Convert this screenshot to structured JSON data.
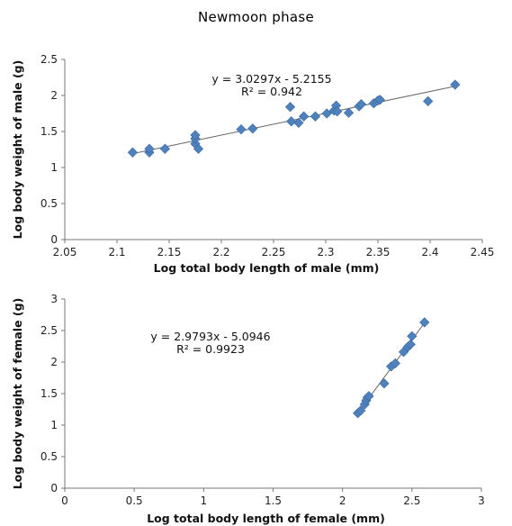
{
  "page_title": "Newmoon phase",
  "colors": {
    "marker": "#4f81bd",
    "trendline": "#666666",
    "axis": "#777777"
  },
  "chart_data": [
    {
      "type": "scatter",
      "xlabel": "Log total body length of male (mm)",
      "ylabel": "Log  body weight of male (g)",
      "xlim": [
        2.05,
        2.45
      ],
      "ylim": [
        0,
        2.5
      ],
      "xticks": [
        "2.05",
        "2.1",
        "2.15",
        "2.2",
        "2.25",
        "2.3",
        "2.35",
        "2.4",
        "2.45"
      ],
      "yticks": [
        "0",
        "0.5",
        "1",
        "1.5",
        "2",
        "2.5"
      ],
      "trendline": {
        "slope": 3.0297,
        "intercept": -5.2155,
        "x_range": [
          2.115,
          2.425
        ]
      },
      "equation": "y = 3.0297x - 5.2155",
      "r_squared": "R² = 0.942",
      "grid": false,
      "points": [
        {
          "x": 2.115,
          "y": 1.21
        },
        {
          "x": 2.131,
          "y": 1.21
        },
        {
          "x": 2.131,
          "y": 1.26
        },
        {
          "x": 2.146,
          "y": 1.26
        },
        {
          "x": 2.175,
          "y": 1.33
        },
        {
          "x": 2.175,
          "y": 1.4
        },
        {
          "x": 2.175,
          "y": 1.45
        },
        {
          "x": 2.178,
          "y": 1.26
        },
        {
          "x": 2.219,
          "y": 1.53
        },
        {
          "x": 2.23,
          "y": 1.54
        },
        {
          "x": 2.266,
          "y": 1.84
        },
        {
          "x": 2.267,
          "y": 1.64
        },
        {
          "x": 2.274,
          "y": 1.62
        },
        {
          "x": 2.279,
          "y": 1.71
        },
        {
          "x": 2.29,
          "y": 1.71
        },
        {
          "x": 2.301,
          "y": 1.75
        },
        {
          "x": 2.308,
          "y": 1.79
        },
        {
          "x": 2.31,
          "y": 1.86
        },
        {
          "x": 2.311,
          "y": 1.78
        },
        {
          "x": 2.322,
          "y": 1.76
        },
        {
          "x": 2.332,
          "y": 1.85
        },
        {
          "x": 2.334,
          "y": 1.88
        },
        {
          "x": 2.346,
          "y": 1.89
        },
        {
          "x": 2.35,
          "y": 1.93
        },
        {
          "x": 2.352,
          "y": 1.94
        },
        {
          "x": 2.398,
          "y": 1.92
        },
        {
          "x": 2.424,
          "y": 2.15
        }
      ]
    },
    {
      "type": "scatter",
      "xlabel": "Log total body length of female (mm)",
      "ylabel": "Log body weight of female (g)",
      "xlim": [
        0,
        3
      ],
      "ylim": [
        0,
        3
      ],
      "xticks": [
        "0",
        "0.5",
        "1",
        "1.5",
        "2",
        "2.5",
        "3"
      ],
      "yticks": [
        "0",
        "0.5",
        "1",
        "1.5",
        "2",
        "2.5",
        "3"
      ],
      "trendline": {
        "slope": 2.9793,
        "intercept": -5.0946,
        "x_range": [
          2.1,
          2.6
        ]
      },
      "equation": "y = 2.9793x - 5.0946",
      "r_squared": "R² = 0.9923",
      "grid": false,
      "points": [
        {
          "x": 2.11,
          "y": 1.19
        },
        {
          "x": 2.13,
          "y": 1.23
        },
        {
          "x": 2.16,
          "y": 1.33
        },
        {
          "x": 2.17,
          "y": 1.39
        },
        {
          "x": 2.18,
          "y": 1.44
        },
        {
          "x": 2.19,
          "y": 1.46
        },
        {
          "x": 2.3,
          "y": 1.66
        },
        {
          "x": 2.35,
          "y": 1.93
        },
        {
          "x": 2.38,
          "y": 1.98
        },
        {
          "x": 2.44,
          "y": 2.16
        },
        {
          "x": 2.47,
          "y": 2.24
        },
        {
          "x": 2.49,
          "y": 2.28
        },
        {
          "x": 2.5,
          "y": 2.41
        },
        {
          "x": 2.59,
          "y": 2.63
        }
      ]
    }
  ]
}
